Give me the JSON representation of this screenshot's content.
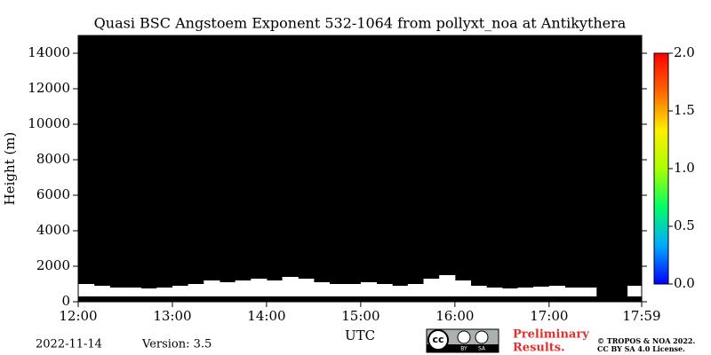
{
  "chart_data": {
    "type": "profile",
    "title": "Quasi BSC Angstoem Exponent 532-1064 from pollyxt_noa at Antikythera",
    "ylabel": "Height (m)",
    "xlabel": "UTC",
    "x": [
      720,
      730,
      740,
      750,
      760,
      770,
      780,
      790,
      800,
      810,
      820,
      830,
      840,
      850,
      860,
      870,
      880,
      890,
      900,
      910,
      920,
      930,
      940,
      950,
      960,
      970,
      980,
      990,
      1000,
      1010,
      1020,
      1030,
      1040,
      1050,
      1060,
      1070
    ],
    "values": [
      1000,
      900,
      800,
      800,
      750,
      800,
      900,
      1000,
      1200,
      1100,
      1200,
      1300,
      1200,
      1400,
      1300,
      1100,
      1000,
      1000,
      1100,
      1000,
      900,
      1000,
      1300,
      1500,
      1200,
      900,
      800,
      750,
      800,
      850,
      900,
      800,
      800,
      null,
      null,
      900
    ],
    "base": [
      300,
      300,
      300,
      300,
      300,
      300,
      300,
      300,
      300,
      300,
      300,
      300,
      300,
      300,
      300,
      300,
      300,
      300,
      300,
      300,
      300,
      300,
      300,
      300,
      300,
      300,
      300,
      300,
      300,
      300,
      300,
      300,
      300,
      null,
      null,
      300
    ],
    "background": "#000000",
    "color": "#ffffff",
    "xlim": [
      720,
      1079
    ],
    "xticks": [
      {
        "value": 720,
        "label": "12:00"
      },
      {
        "value": 780,
        "label": "13:00"
      },
      {
        "value": 840,
        "label": "14:00"
      },
      {
        "value": 900,
        "label": "15:00"
      },
      {
        "value": 960,
        "label": "16:00"
      },
      {
        "value": 1020,
        "label": "17:00"
      },
      {
        "value": 1079,
        "label": "17:59"
      }
    ],
    "ylim": [
      0,
      15000
    ],
    "yticks": [
      0,
      2000,
      4000,
      6000,
      8000,
      10000,
      12000,
      14000
    ],
    "clim": [
      0,
      2
    ],
    "cticks": [
      {
        "value": 0,
        "label": "0.0"
      },
      {
        "value": 0.5,
        "label": "0.5"
      },
      {
        "value": 1,
        "label": "1.0"
      },
      {
        "value": 1.5,
        "label": "1.5"
      },
      {
        "value": 2,
        "label": "2.0"
      }
    ],
    "colormap": [
      "#0000ff",
      "#00aaff",
      "#00ff66",
      "#aaff00",
      "#ffee00",
      "#ff6600",
      "#ff0000"
    ]
  },
  "footer": {
    "date": "2022-11-14",
    "version": "Version: 3.5",
    "badge": {
      "cc": "cc",
      "by": "BY",
      "sa": "SA"
    },
    "preliminary": [
      "Preliminary",
      "Results."
    ],
    "copyright": [
      "© TROPOS & NOA 2022.",
      "CC BY SA 4.0 License."
    ]
  }
}
